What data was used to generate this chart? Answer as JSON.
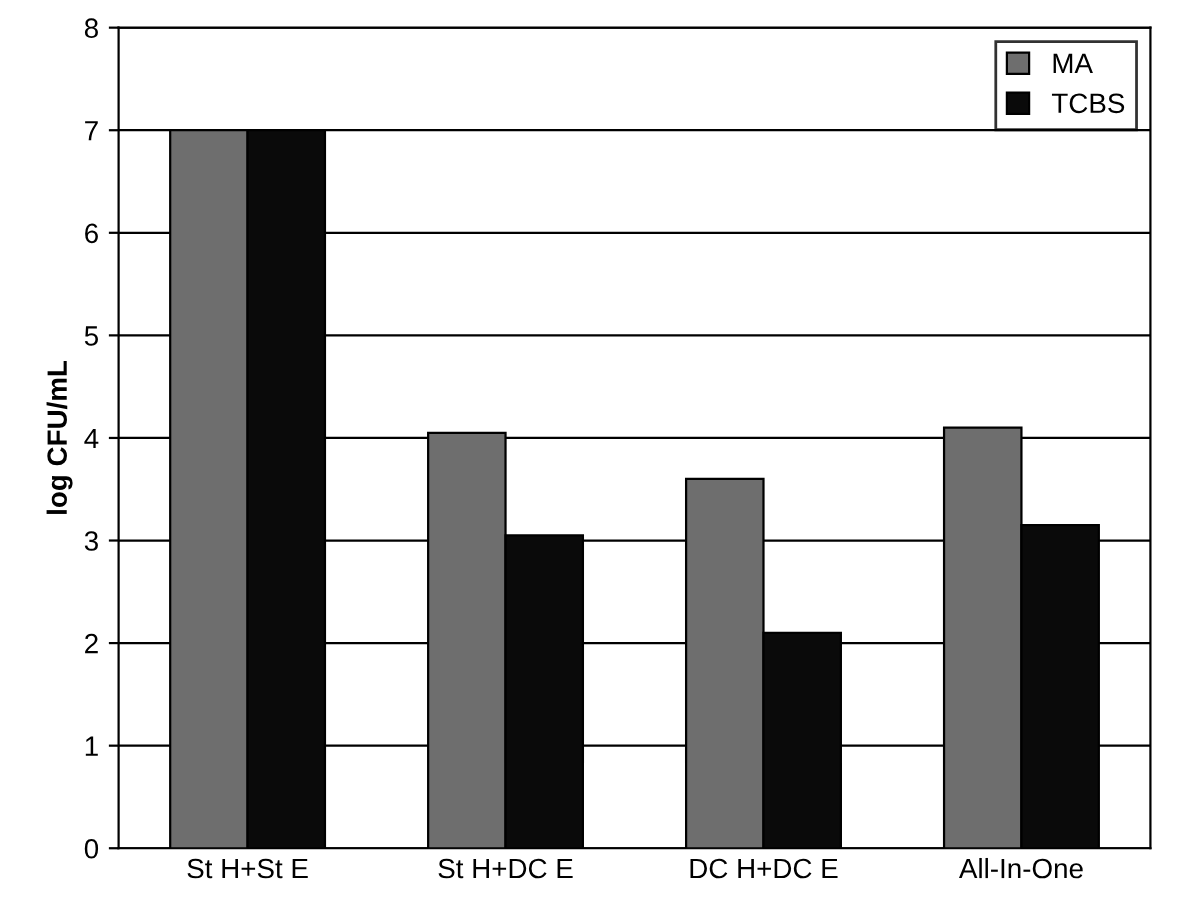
{
  "chart_data": {
    "type": "bar",
    "ylabel": "log CFU/mL",
    "categories": [
      "St H+St E",
      "St H+DC E",
      "DC H+DC E",
      "All-In-One"
    ],
    "series": [
      {
        "name": "MA",
        "color": "#6e6e6e",
        "values": [
          7.0,
          4.05,
          3.6,
          4.1
        ]
      },
      {
        "name": "TCBS",
        "color": "#0a0a0a",
        "values": [
          7.0,
          3.05,
          2.1,
          3.15
        ]
      }
    ],
    "ylim": [
      0,
      8
    ],
    "yticks": [
      0,
      1,
      2,
      3,
      4,
      5,
      6,
      7,
      8
    ],
    "grid": "y",
    "legend": "top right"
  }
}
